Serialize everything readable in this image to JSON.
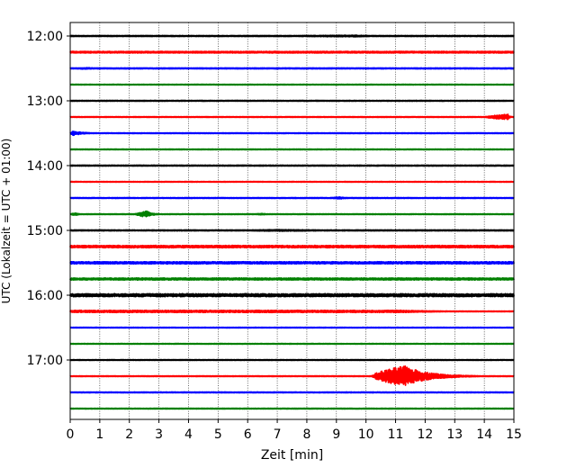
{
  "chart_data": {
    "type": "line",
    "title": "",
    "xlabel": "Zeit  [min]",
    "ylabel": "UTC (Lokalzeit = UTC + 01:00)",
    "xlim": [
      0,
      15
    ],
    "x_ticks": [
      0,
      1,
      2,
      3,
      4,
      5,
      6,
      7,
      8,
      9,
      10,
      11,
      12,
      13,
      14,
      15
    ],
    "y_tick_labels": [
      "12:00",
      "13:00",
      "14:00",
      "15:00",
      "16:00",
      "17:00"
    ],
    "grid": "vertical dotted",
    "colors": [
      "#000000",
      "#ff0000",
      "#0000ff",
      "#008000"
    ],
    "series": [
      {
        "time": "12:00",
        "color": "#000000",
        "baseline_amp": 0.5,
        "events": [
          {
            "start": 6.4,
            "peak": 9.6,
            "end": 12.6,
            "amp": 0.9
          }
        ]
      },
      {
        "time": "12:15",
        "color": "#ff0000",
        "baseline_amp": 0.9,
        "events": []
      },
      {
        "time": "12:30",
        "color": "#0000ff",
        "baseline_amp": 0.5,
        "events": [
          {
            "start": 0.0,
            "peak": 0.6,
            "end": 1.7,
            "amp": 0.9
          }
        ]
      },
      {
        "time": "12:45",
        "color": "#008000",
        "baseline_amp": 0.3,
        "events": []
      },
      {
        "time": "13:00",
        "color": "#000000",
        "baseline_amp": 0.4,
        "events": []
      },
      {
        "time": "13:15",
        "color": "#ff0000",
        "baseline_amp": 0.35,
        "events": [
          {
            "start": 14.0,
            "peak": 14.8,
            "end": 15.0,
            "amp": 3.0
          }
        ]
      },
      {
        "time": "13:30",
        "color": "#0000ff",
        "baseline_amp": 0.35,
        "events": [
          {
            "start": 0.0,
            "peak": 0.1,
            "end": 1.2,
            "amp": 2.4
          }
        ]
      },
      {
        "time": "13:45",
        "color": "#008000",
        "baseline_amp": 0.35,
        "events": []
      },
      {
        "time": "14:00",
        "color": "#000000",
        "baseline_amp": 0.45,
        "events": []
      },
      {
        "time": "14:15",
        "color": "#ff0000",
        "baseline_amp": 0.3,
        "events": []
      },
      {
        "time": "14:30",
        "color": "#0000ff",
        "baseline_amp": 0.4,
        "events": [
          {
            "start": 8.8,
            "peak": 9.1,
            "end": 10.0,
            "amp": 1.2
          }
        ]
      },
      {
        "time": "14:45",
        "color": "#008000",
        "baseline_amp": 0.35,
        "events": [
          {
            "start": 0.0,
            "peak": 0.2,
            "end": 0.5,
            "amp": 1.4
          },
          {
            "start": 2.2,
            "peak": 2.6,
            "end": 3.2,
            "amp": 3.5
          },
          {
            "start": 6.2,
            "peak": 6.5,
            "end": 7.0,
            "amp": 0.8
          }
        ]
      },
      {
        "time": "15:00",
        "color": "#000000",
        "baseline_amp": 0.5,
        "events": [
          {
            "start": 5.8,
            "peak": 7.0,
            "end": 15.0,
            "amp": 0.9
          }
        ]
      },
      {
        "time": "15:15",
        "color": "#ff0000",
        "baseline_amp": 1.3,
        "events": []
      },
      {
        "time": "15:30",
        "color": "#0000ff",
        "baseline_amp": 1.2,
        "events": []
      },
      {
        "time": "15:45",
        "color": "#008000",
        "baseline_amp": 1.1,
        "events": []
      },
      {
        "time": "16:00",
        "color": "#000000",
        "baseline_amp": 1.6,
        "events": []
      },
      {
        "time": "16:15",
        "color": "#ff0000",
        "baseline_amp": 1.2,
        "decay_at": 11.3,
        "events": []
      },
      {
        "time": "16:30",
        "color": "#0000ff",
        "baseline_amp": 0.3,
        "events": []
      },
      {
        "time": "16:45",
        "color": "#008000",
        "baseline_amp": 0.3,
        "events": []
      },
      {
        "time": "17:00",
        "color": "#000000",
        "baseline_amp": 0.35,
        "events": []
      },
      {
        "time": "17:15",
        "color": "#ff0000",
        "baseline_amp": 0.35,
        "events": [
          {
            "start": 10.2,
            "peak": 11.3,
            "end": 13.8,
            "amp": 11.5
          }
        ]
      },
      {
        "time": "17:30",
        "color": "#0000ff",
        "baseline_amp": 0.4,
        "events": []
      },
      {
        "time": "17:45",
        "color": "#008000",
        "baseline_amp": 0.35,
        "events": []
      }
    ]
  }
}
